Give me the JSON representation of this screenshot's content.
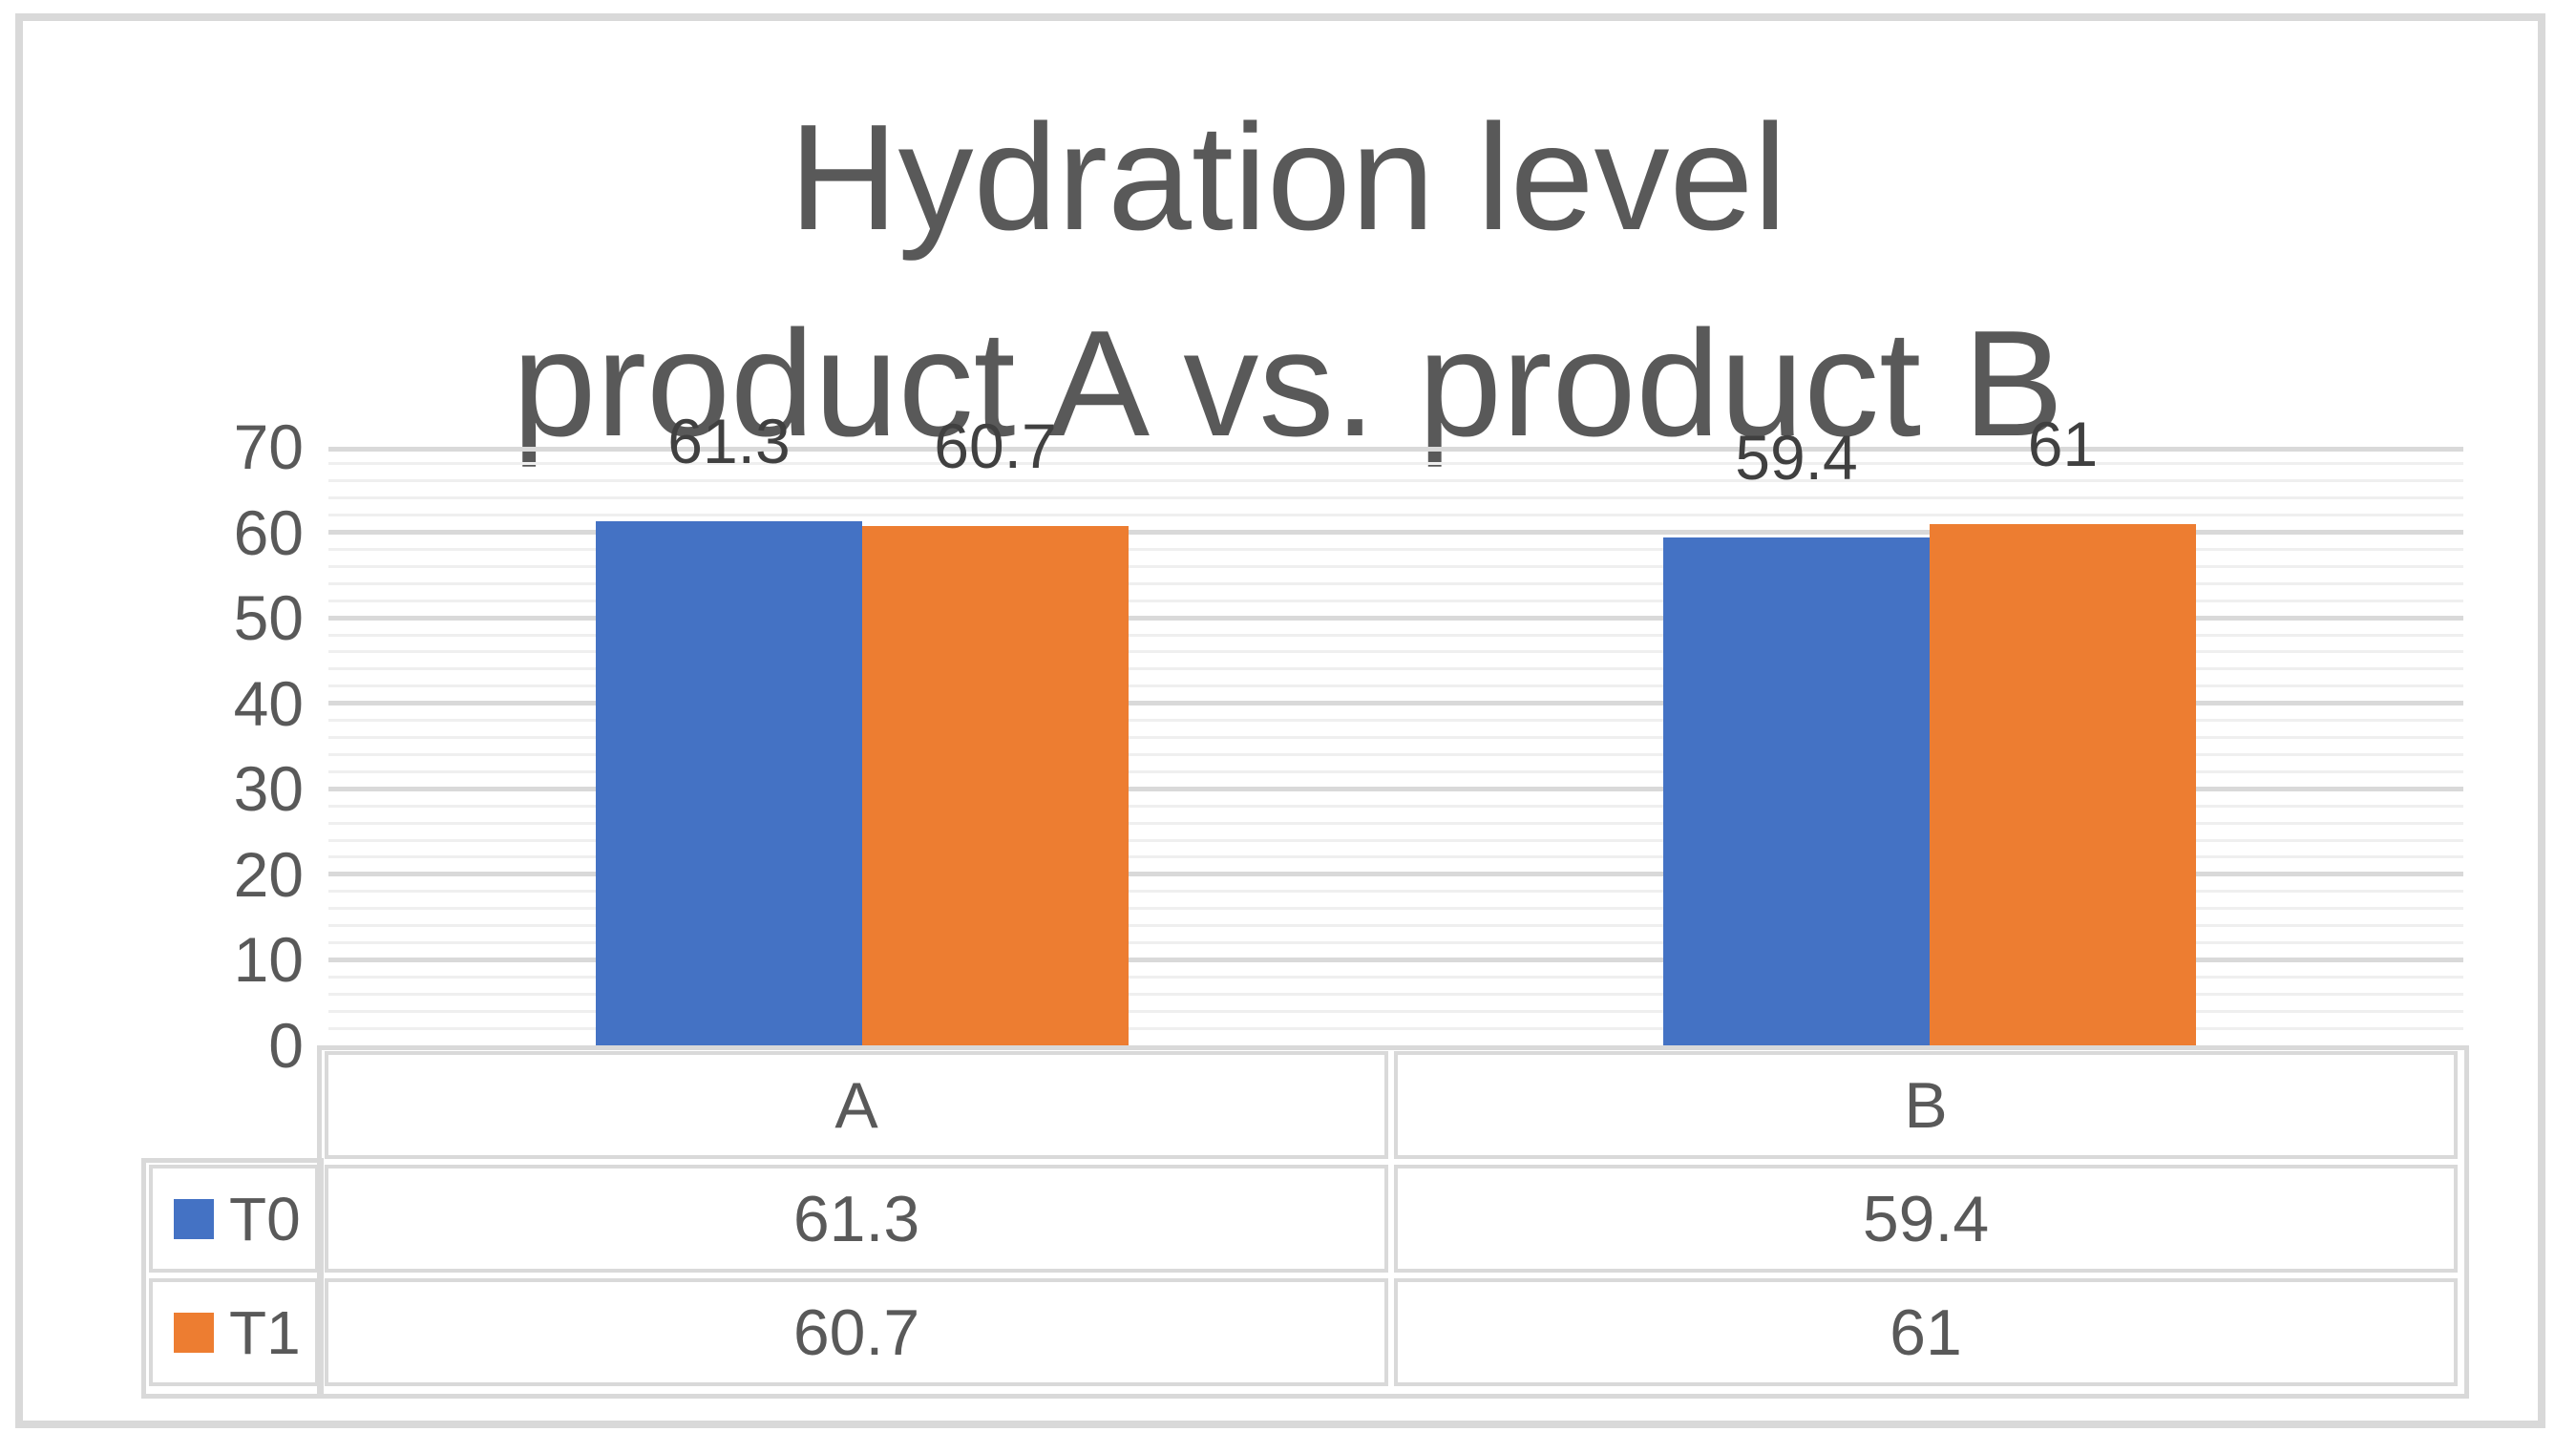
{
  "chart_data": {
    "type": "bar",
    "title": "Hydration level\nproduct A vs. product B",
    "title_lines": [
      "Hydration level",
      "product A vs. product B"
    ],
    "categories": [
      "A",
      "B"
    ],
    "series": [
      {
        "name": "T0",
        "color": "#4472C4",
        "values": [
          61.3,
          59.4
        ]
      },
      {
        "name": "T1",
        "color": "#ED7D31",
        "values": [
          60.7,
          61
        ]
      }
    ],
    "xlabel": "",
    "ylabel": "",
    "ylim": [
      0,
      70
    ],
    "yticks": [
      70,
      60,
      50,
      40,
      30,
      20,
      10,
      0
    ],
    "ytick_step": 10,
    "minor_unit": 2,
    "grid": {
      "major": true,
      "minor": true
    },
    "data_labels": true,
    "legend_position": "data-table-left"
  },
  "colors": {
    "series_t0": "#4472C4",
    "series_t1": "#ED7D31",
    "grid_major": "#D9D9D9",
    "grid_minor": "#EFEFEF",
    "frame_border": "#D9D9D9",
    "table_border": "#D9D9D9",
    "title_text": "#595959",
    "axis_text": "#595959",
    "table_text": "#595959",
    "data_label_text": "#404040",
    "background": "#FFFFFF"
  }
}
